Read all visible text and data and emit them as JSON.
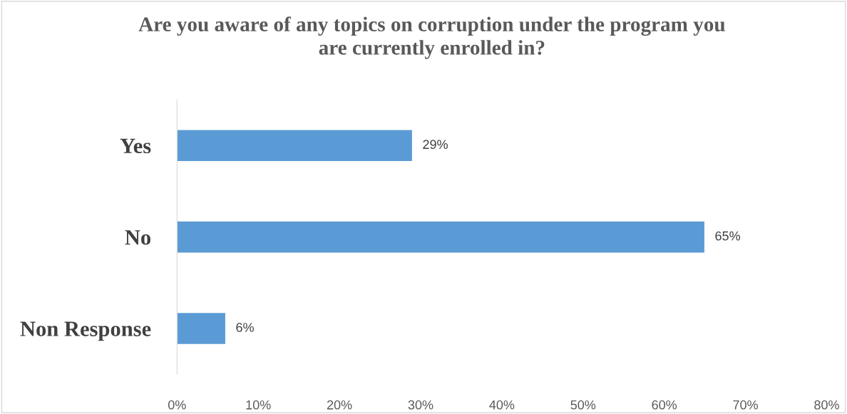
{
  "chart_data": {
    "type": "bar",
    "orientation": "horizontal",
    "title": "Are you aware of any topics on corruption under the program you\nare currently enrolled in?",
    "categories": [
      "Yes",
      "No",
      "Non Response"
    ],
    "values": [
      29,
      65,
      6
    ],
    "value_labels": [
      "29%",
      "65%",
      "6%"
    ],
    "color": "#5b9bd5",
    "xlim": [
      0,
      80
    ],
    "xticks": [
      {
        "value": 0,
        "label": "0%"
      },
      {
        "value": 10,
        "label": "10%"
      },
      {
        "value": 20,
        "label": "20%"
      },
      {
        "value": 30,
        "label": "30%"
      },
      {
        "value": 40,
        "label": "40%"
      },
      {
        "value": 50,
        "label": "50%"
      },
      {
        "value": 60,
        "label": "60%"
      },
      {
        "value": 70,
        "label": "70%"
      },
      {
        "value": 80,
        "label": "80%"
      }
    ],
    "grid": false,
    "legend": false
  }
}
